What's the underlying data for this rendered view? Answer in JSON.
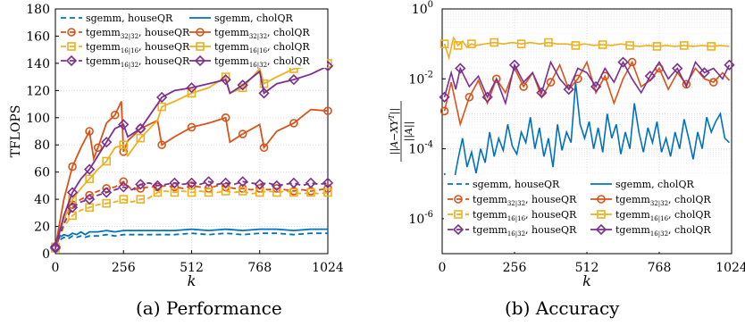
{
  "captions": {
    "left": "(a) Performance",
    "right": "(b) Accuracy"
  },
  "legend_suffixes": {
    "house": ", houseQR",
    "chol": ", cholQR"
  },
  "colors": {
    "sgemm": "#0072BD",
    "t32": "#D95319",
    "t16": "#EDB120",
    "t1632": "#7E2F8E"
  },
  "chart_data": [
    {
      "type": "line",
      "title": "",
      "xlabel": "k",
      "ylabel": "TFLOPS",
      "xlim": [
        0,
        1024
      ],
      "ylim": [
        0,
        180
      ],
      "xticks": [
        0,
        256,
        512,
        768,
        1024
      ],
      "yticks": [
        0,
        20,
        40,
        60,
        80,
        100,
        120,
        140,
        160,
        180
      ],
      "grid": true,
      "legend_position": "top-left",
      "series": [
        {
          "name": "sgemm",
          "sub": "",
          "method": "houseQR",
          "color": "#0072BD",
          "dash": true,
          "marker": "none",
          "x": [
            0,
            16,
            32,
            48,
            64,
            80,
            96,
            112,
            128,
            160,
            192,
            224,
            256,
            320,
            384,
            448,
            512,
            576,
            640,
            704,
            768,
            832,
            896,
            960,
            1024
          ],
          "y": [
            5,
            10,
            12,
            11,
            13,
            12,
            13,
            12,
            13,
            13,
            14,
            13,
            14,
            14,
            14,
            14,
            15,
            14,
            15,
            14,
            15,
            15,
            14,
            15,
            15
          ]
        },
        {
          "name": "sgemm",
          "sub": "",
          "method": "cholQR",
          "color": "#0072BD",
          "dash": false,
          "marker": "none",
          "x": [
            0,
            16,
            32,
            48,
            64,
            80,
            96,
            112,
            128,
            160,
            192,
            224,
            256,
            320,
            384,
            448,
            512,
            576,
            640,
            704,
            768,
            832,
            896,
            960,
            1024
          ],
          "y": [
            5,
            12,
            14,
            13,
            15,
            14,
            16,
            14,
            16,
            16,
            17,
            16,
            17,
            17,
            17,
            17,
            18,
            17,
            18,
            17,
            18,
            18,
            17,
            18,
            18
          ]
        },
        {
          "name": "tgemm",
          "sub": "32|32",
          "method": "houseQR",
          "color": "#D95319",
          "dash": true,
          "marker": "circle",
          "x": [
            0,
            32,
            64,
            96,
            128,
            160,
            192,
            224,
            256,
            288,
            320,
            352,
            384,
            416,
            448,
            480,
            512,
            544,
            576,
            608,
            640,
            672,
            704,
            736,
            768,
            800,
            832,
            864,
            896,
            928,
            960,
            992,
            1024
          ],
          "y": [
            5,
            25,
            36,
            40,
            43,
            46,
            48,
            49,
            53,
            47,
            48,
            49,
            49,
            50,
            49,
            48,
            50,
            49,
            48,
            50,
            49,
            48,
            48,
            47,
            48,
            47,
            48,
            47,
            46,
            47,
            46,
            47,
            48
          ]
        },
        {
          "name": "tgemm",
          "sub": "32|32",
          "method": "cholQR",
          "color": "#D95319",
          "dash": false,
          "marker": "circle",
          "x": [
            0,
            32,
            64,
            96,
            128,
            144,
            160,
            192,
            224,
            248,
            256,
            272,
            320,
            384,
            400,
            448,
            512,
            576,
            640,
            656,
            704,
            768,
            784,
            832,
            896,
            960,
            1024
          ],
          "y": [
            5,
            40,
            64,
            78,
            90,
            70,
            78,
            96,
            102,
            112,
            75,
            83,
            92,
            98,
            80,
            86,
            93,
            96,
            100,
            82,
            88,
            95,
            78,
            90,
            96,
            106,
            105
          ]
        },
        {
          "name": "tgemm",
          "sub": "16|16",
          "method": "houseQR",
          "color": "#EDB120",
          "dash": true,
          "marker": "square",
          "x": [
            0,
            32,
            64,
            96,
            128,
            160,
            192,
            224,
            256,
            288,
            320,
            352,
            384,
            416,
            448,
            480,
            512,
            544,
            576,
            608,
            640,
            672,
            704,
            736,
            768,
            800,
            832,
            864,
            896,
            928,
            960,
            992,
            1024
          ],
          "y": [
            4,
            20,
            28,
            32,
            34,
            36,
            37,
            38,
            40,
            38,
            40,
            41,
            45,
            46,
            45,
            46,
            45,
            46,
            45,
            45,
            46,
            45,
            46,
            44,
            45,
            46,
            45,
            46,
            45,
            44,
            45,
            44,
            45
          ]
        },
        {
          "name": "tgemm",
          "sub": "16|16",
          "method": "cholQR",
          "color": "#EDB120",
          "dash": false,
          "marker": "square",
          "x": [
            0,
            32,
            64,
            96,
            128,
            160,
            192,
            224,
            256,
            272,
            320,
            384,
            400,
            448,
            512,
            576,
            640,
            656,
            704,
            768,
            784,
            832,
            896,
            960,
            1024
          ],
          "y": [
            5,
            25,
            40,
            48,
            55,
            62,
            68,
            78,
            80,
            72,
            85,
            98,
            108,
            112,
            118,
            122,
            130,
            118,
            122,
            136,
            125,
            130,
            136,
            138,
            140
          ]
        },
        {
          "name": "tgemm",
          "sub": "16|32",
          "method": "houseQR",
          "color": "#7E2F8E",
          "dash": true,
          "marker": "diamond",
          "x": [
            0,
            32,
            64,
            96,
            128,
            160,
            192,
            224,
            256,
            288,
            320,
            352,
            384,
            416,
            448,
            480,
            512,
            544,
            576,
            608,
            640,
            672,
            704,
            736,
            768,
            800,
            832,
            864,
            896,
            928,
            960,
            992,
            1024
          ],
          "y": [
            4,
            22,
            34,
            38,
            40,
            43,
            45,
            47,
            49,
            47,
            51,
            52,
            50,
            51,
            52,
            51,
            52,
            51,
            53,
            51,
            52,
            51,
            53,
            52,
            51,
            52,
            50,
            51,
            52,
            50,
            52,
            51,
            52
          ]
        },
        {
          "name": "tgemm",
          "sub": "16|32",
          "method": "cholQR",
          "color": "#7E2F8E",
          "dash": false,
          "marker": "diamond",
          "x": [
            0,
            32,
            64,
            96,
            128,
            160,
            192,
            224,
            256,
            272,
            320,
            384,
            400,
            448,
            512,
            576,
            640,
            656,
            704,
            768,
            784,
            832,
            896,
            960,
            1024
          ],
          "y": [
            5,
            28,
            45,
            55,
            62,
            72,
            82,
            92,
            95,
            86,
            92,
            110,
            115,
            120,
            122,
            125,
            128,
            118,
            124,
            134,
            118,
            125,
            128,
            132,
            138
          ]
        }
      ]
    },
    {
      "type": "line",
      "title": "",
      "xlabel": "k",
      "ylabel": "||A−XY^T|| / ||A||",
      "ylabel_num": "||A−XY",
      "ylabel_sup": "T",
      "ylabel_num_tail": "||",
      "ylabel_den": "||A||",
      "yscale": "log",
      "xlim": [
        0,
        1024
      ],
      "ylim": [
        1e-07,
        1
      ],
      "xticks": [
        0,
        256,
        512,
        768,
        1024
      ],
      "yticks_exp": [
        0,
        -2,
        -4,
        -6
      ],
      "ytick_base": "10",
      "grid": true,
      "legend_position": "bottom",
      "series": [
        {
          "name": "sgemm",
          "sub": "",
          "method": "houseQR",
          "color": "#0072BD",
          "dash": true,
          "marker": "none",
          "x": [],
          "y": []
        },
        {
          "name": "sgemm",
          "sub": "",
          "method": "cholQR",
          "color": "#0072BD",
          "dash": false,
          "marker": "none",
          "x": [
            8,
            24,
            40,
            56,
            72,
            88,
            104,
            120,
            136,
            152,
            168,
            184,
            200,
            216,
            232,
            248,
            264,
            280,
            296,
            312,
            328,
            344,
            360,
            376,
            392,
            408,
            424,
            440,
            456,
            472,
            488,
            504,
            520,
            536,
            552,
            568,
            584,
            600,
            616,
            632,
            648,
            664,
            680,
            696,
            712,
            728,
            744,
            760,
            776,
            792,
            808,
            824,
            840,
            856,
            872,
            888,
            904,
            920,
            936,
            952,
            968,
            984,
            1000,
            1016
          ],
          "y": [
            2e-05,
            6e-06,
            1e-05,
            5e-05,
            0.0002,
            3e-05,
            8e-05,
            2e-05,
            0.0001,
            4e-05,
            0.0003,
            6e-05,
            0.0002,
            9e-05,
            0.0005,
            0.00012,
            7e-05,
            0.0003,
            0.00015,
            0.0008,
            0.0001,
            0.0004,
            6e-05,
            0.0002,
            3e-05,
            0.0005,
            9e-05,
            0.0003,
            0.00015,
            0.008,
            0.0005,
            0.0002,
            0.0006,
            0.0001,
            0.0004,
            8e-05,
            0.001,
            0.0002,
            0.0005,
            7e-05,
            0.0003,
            0.0001,
            0.002,
            0.0003,
            8e-05,
            0.0004,
            0.00015,
            0.0006,
            8e-05,
            0.0002,
            6e-05,
            0.0003,
            0.0001,
            0.0007,
            0.0002,
            5e-05,
            0.0003,
            0.0001,
            0.0008,
            0.0003,
            0.0006,
            0.001,
            0.0002,
            0.00015
          ]
        },
        {
          "name": "tgemm",
          "sub": "32|32",
          "method": "houseQR",
          "color": "#D95319",
          "dash": true,
          "marker": "circle",
          "x": [],
          "y": []
        },
        {
          "name": "tgemm",
          "sub": "32|32",
          "method": "cholQR",
          "color": "#D95319",
          "dash": false,
          "marker": "circle",
          "x": [
            8,
            32,
            64,
            96,
            128,
            160,
            192,
            224,
            256,
            288,
            320,
            352,
            384,
            416,
            448,
            480,
            512,
            544,
            576,
            608,
            640,
            672,
            704,
            736,
            768,
            800,
            832,
            864,
            896,
            928,
            960,
            992,
            1016
          ],
          "y": [
            0.0012,
            0.008,
            0.0005,
            0.003,
            0.009,
            0.002,
            0.01,
            0.004,
            0.02,
            0.006,
            0.015,
            0.003,
            0.008,
            0.025,
            0.005,
            0.01,
            0.03,
            0.004,
            0.012,
            0.002,
            0.01,
            0.03,
            0.006,
            0.009,
            0.02,
            0.005,
            0.015,
            0.007,
            0.02,
            0.01,
            0.008,
            0.015,
            0.009
          ]
        },
        {
          "name": "tgemm",
          "sub": "16|16",
          "method": "houseQR",
          "color": "#EDB120",
          "dash": true,
          "marker": "square",
          "x": [],
          "y": []
        },
        {
          "name": "tgemm",
          "sub": "16|16",
          "method": "cholQR",
          "color": "#EDB120",
          "dash": false,
          "marker": "square",
          "x": [
            8,
            24,
            40,
            56,
            72,
            88,
            104,
            120,
            152,
            184,
            216,
            248,
            280,
            312,
            344,
            376,
            408,
            440,
            472,
            504,
            536,
            568,
            600,
            632,
            664,
            696,
            728,
            760,
            792,
            824,
            856,
            888,
            920,
            952,
            984,
            1016
          ],
          "y": [
            0.1,
            0.04,
            0.15,
            0.09,
            0.12,
            0.08,
            0.1,
            0.09,
            0.1,
            0.11,
            0.1,
            0.11,
            0.1,
            0.11,
            0.1,
            0.11,
            0.1,
            0.1,
            0.09,
            0.1,
            0.09,
            0.095,
            0.09,
            0.1,
            0.09,
            0.085,
            0.09,
            0.085,
            0.09,
            0.085,
            0.09,
            0.085,
            0.09,
            0.085,
            0.09,
            0.085
          ]
        },
        {
          "name": "tgemm",
          "sub": "16|32",
          "method": "houseQR",
          "color": "#7E2F8E",
          "dash": true,
          "marker": "diamond",
          "x": [],
          "y": []
        },
        {
          "name": "tgemm",
          "sub": "16|32",
          "method": "cholQR",
          "color": "#7E2F8E",
          "dash": false,
          "marker": "diamond",
          "x": [
            8,
            32,
            48,
            64,
            96,
            128,
            160,
            192,
            224,
            256,
            288,
            320,
            352,
            384,
            416,
            448,
            480,
            512,
            544,
            576,
            608,
            640,
            672,
            704,
            736,
            768,
            800,
            832,
            864,
            896,
            928,
            960,
            992,
            1016
          ],
          "y": [
            0.003,
            0.015,
            0.005,
            0.02,
            0.006,
            0.012,
            0.003,
            0.01,
            0.002,
            0.025,
            0.008,
            0.015,
            0.004,
            0.03,
            0.01,
            0.005,
            0.02,
            0.015,
            0.006,
            0.02,
            0.008,
            0.03,
            0.01,
            0.004,
            0.012,
            0.03,
            0.01,
            0.02,
            0.006,
            0.03,
            0.015,
            0.02,
            0.01,
            0.025
          ]
        }
      ]
    }
  ]
}
